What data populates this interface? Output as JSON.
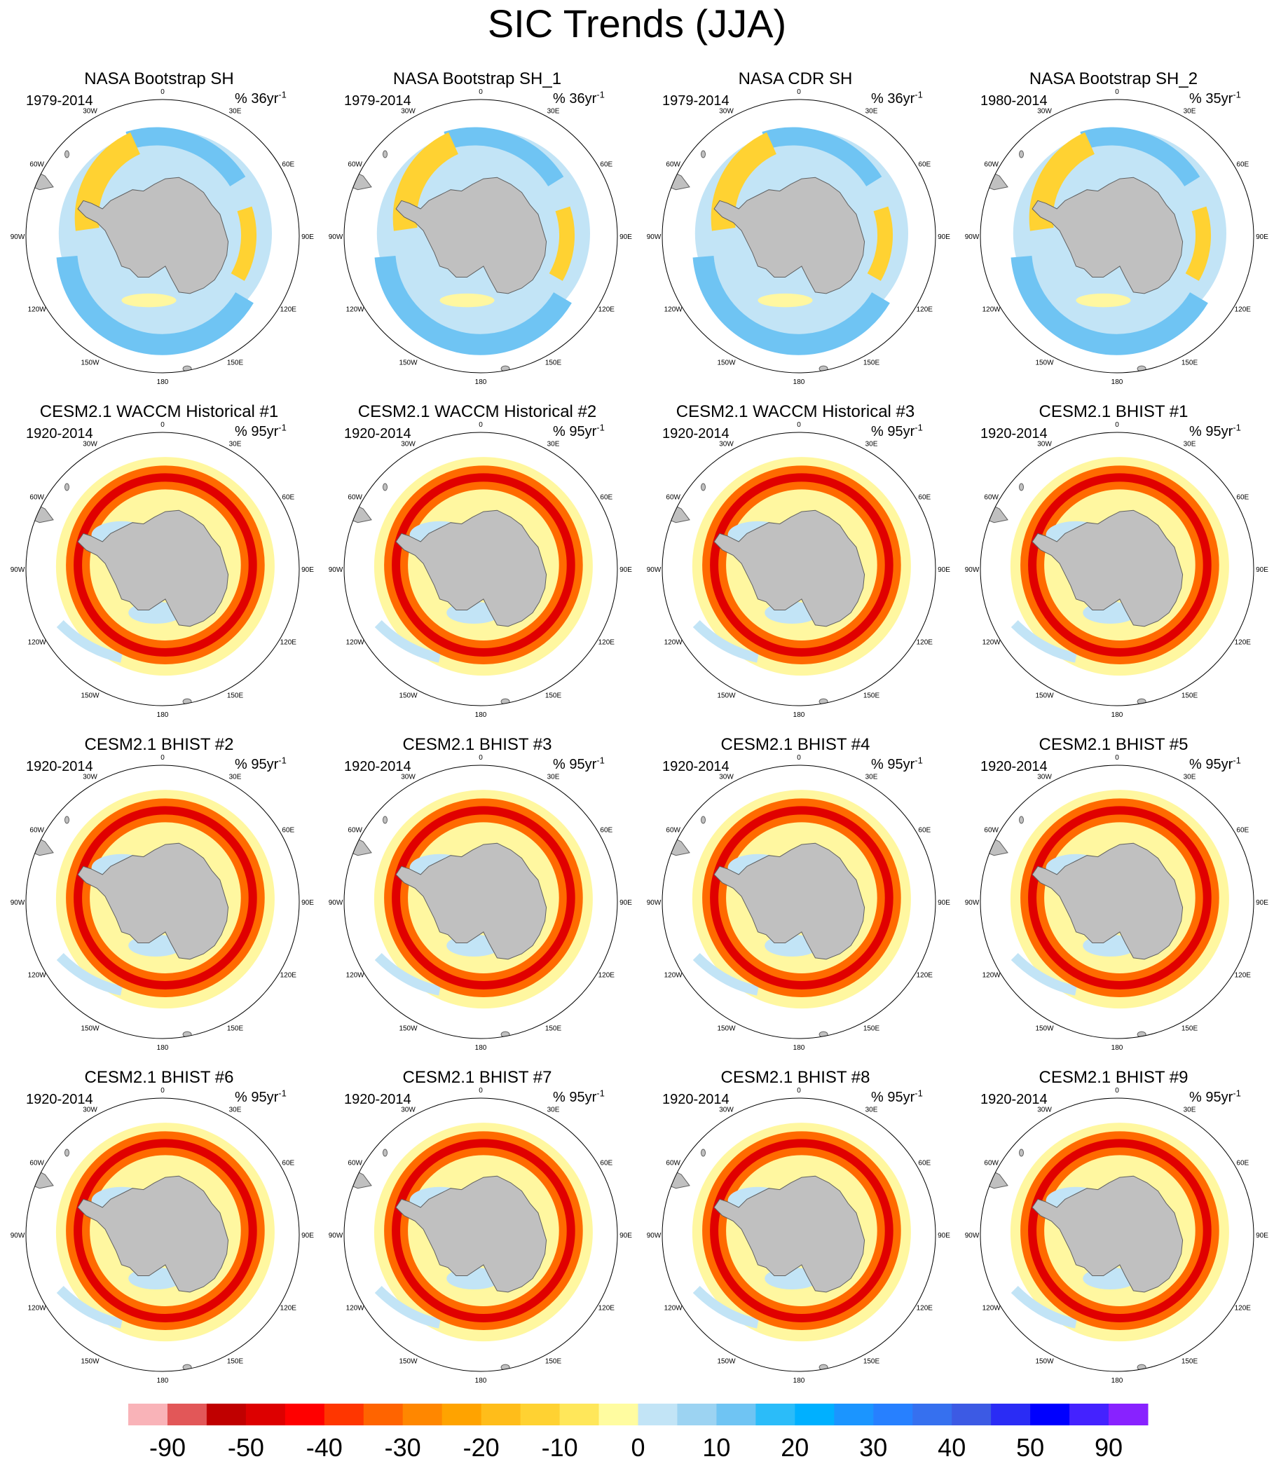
{
  "title": "SIC Trends (JJA)",
  "longitude_labels": [
    "0",
    "30E",
    "60E",
    "90E",
    "120E",
    "150E",
    "180",
    "150W",
    "120W",
    "90W",
    "60W",
    "30W"
  ],
  "panels": [
    {
      "title": "NASA Bootstrap SH",
      "period": "1979-2014",
      "units_prefix": "% 36yr",
      "units_sup": "-1",
      "kind": "obs"
    },
    {
      "title": "NASA Bootstrap SH_1",
      "period": "1979-2014",
      "units_prefix": "% 36yr",
      "units_sup": "-1",
      "kind": "obs"
    },
    {
      "title": "NASA CDR SH",
      "period": "1979-2014",
      "units_prefix": "% 36yr",
      "units_sup": "-1",
      "kind": "obs"
    },
    {
      "title": "NASA Bootstrap SH_2",
      "period": "1980-2014",
      "units_prefix": "% 35yr",
      "units_sup": "-1",
      "kind": "obs"
    },
    {
      "title": "CESM2.1 WACCM Historical #1",
      "period": "1920-2014",
      "units_prefix": "% 95yr",
      "units_sup": "-1",
      "kind": "model"
    },
    {
      "title": "CESM2.1 WACCM Historical #2",
      "period": "1920-2014",
      "units_prefix": "% 95yr",
      "units_sup": "-1",
      "kind": "model"
    },
    {
      "title": "CESM2.1 WACCM Historical #3",
      "period": "1920-2014",
      "units_prefix": "% 95yr",
      "units_sup": "-1",
      "kind": "model"
    },
    {
      "title": "CESM2.1 BHIST #1",
      "period": "1920-2014",
      "units_prefix": "% 95yr",
      "units_sup": "-1",
      "kind": "model"
    },
    {
      "title": "CESM2.1 BHIST #2",
      "period": "1920-2014",
      "units_prefix": "% 95yr",
      "units_sup": "-1",
      "kind": "model"
    },
    {
      "title": "CESM2.1 BHIST #3",
      "period": "1920-2014",
      "units_prefix": "% 95yr",
      "units_sup": "-1",
      "kind": "model"
    },
    {
      "title": "CESM2.1 BHIST #4",
      "period": "1920-2014",
      "units_prefix": "% 95yr",
      "units_sup": "-1",
      "kind": "model"
    },
    {
      "title": "CESM2.1 BHIST #5",
      "period": "1920-2014",
      "units_prefix": "% 95yr",
      "units_sup": "-1",
      "kind": "model"
    },
    {
      "title": "CESM2.1 BHIST #6",
      "period": "1920-2014",
      "units_prefix": "% 95yr",
      "units_sup": "-1",
      "kind": "model"
    },
    {
      "title": "CESM2.1 BHIST #7",
      "period": "1920-2014",
      "units_prefix": "% 95yr",
      "units_sup": "-1",
      "kind": "model"
    },
    {
      "title": "CESM2.1 BHIST #8",
      "period": "1920-2014",
      "units_prefix": "% 95yr",
      "units_sup": "-1",
      "kind": "model"
    },
    {
      "title": "CESM2.1 BHIST #9",
      "period": "1920-2014",
      "units_prefix": "% 95yr",
      "units_sup": "-1",
      "kind": "model"
    }
  ],
  "colorbar": {
    "colors": [
      "#f9b3b8",
      "#e25758",
      "#c00000",
      "#dd0000",
      "#ff0000",
      "#ff3600",
      "#ff6400",
      "#ff8700",
      "#ffa300",
      "#ffbd1a",
      "#ffd232",
      "#ffe75a",
      "#fffca0",
      "#c2e4f6",
      "#9cd3f2",
      "#6fc4f3",
      "#2bbcf9",
      "#00b0ff",
      "#1b95ff",
      "#2780ff",
      "#3670ef",
      "#3c5ae4",
      "#2a2cf5",
      "#0000ff",
      "#4422ff",
      "#8822ff"
    ],
    "tick_labels": [
      "-90",
      "-50",
      "-40",
      "-30",
      "-20",
      "-10",
      "0",
      "10",
      "20",
      "30",
      "40",
      "50",
      "90"
    ]
  },
  "colors": {
    "land": "#c0c0c0",
    "land_outline": "#606060",
    "ocean": "#ffffff",
    "model_ring_strong": "#e00000",
    "model_ring_mid": "#ff6a00",
    "model_background": "#fff7a0",
    "obs_negative": "#6fc4f3",
    "obs_negative_light": "#c2e4f6",
    "obs_positive": "#ffd232"
  }
}
